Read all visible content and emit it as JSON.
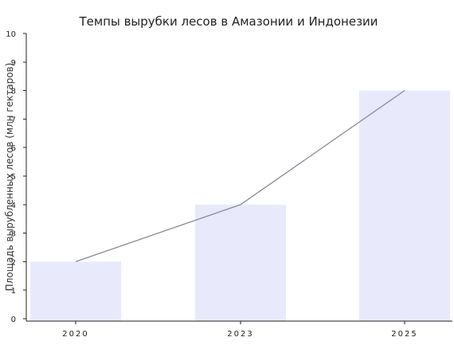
{
  "chart_data": {
    "type": "bar",
    "title": "Темпы вырубки лесов в Амазонии и Индонезии",
    "xlabel": "",
    "ylabel": "Площадь вырубленных лесов (млн гектаров)",
    "categories": [
      "2020",
      "2023",
      "2025"
    ],
    "values": [
      2,
      4,
      8
    ],
    "overlay_line": {
      "values": [
        2,
        4,
        8
      ]
    },
    "ylim": [
      0,
      10
    ],
    "yticks": [
      0,
      1,
      2,
      3,
      4,
      5,
      6,
      7,
      8,
      9,
      10
    ],
    "grid": false,
    "legend": "none",
    "colors": {
      "bar": "#e8eafc",
      "line": "#8a8a96",
      "axis": "#222222"
    }
  }
}
